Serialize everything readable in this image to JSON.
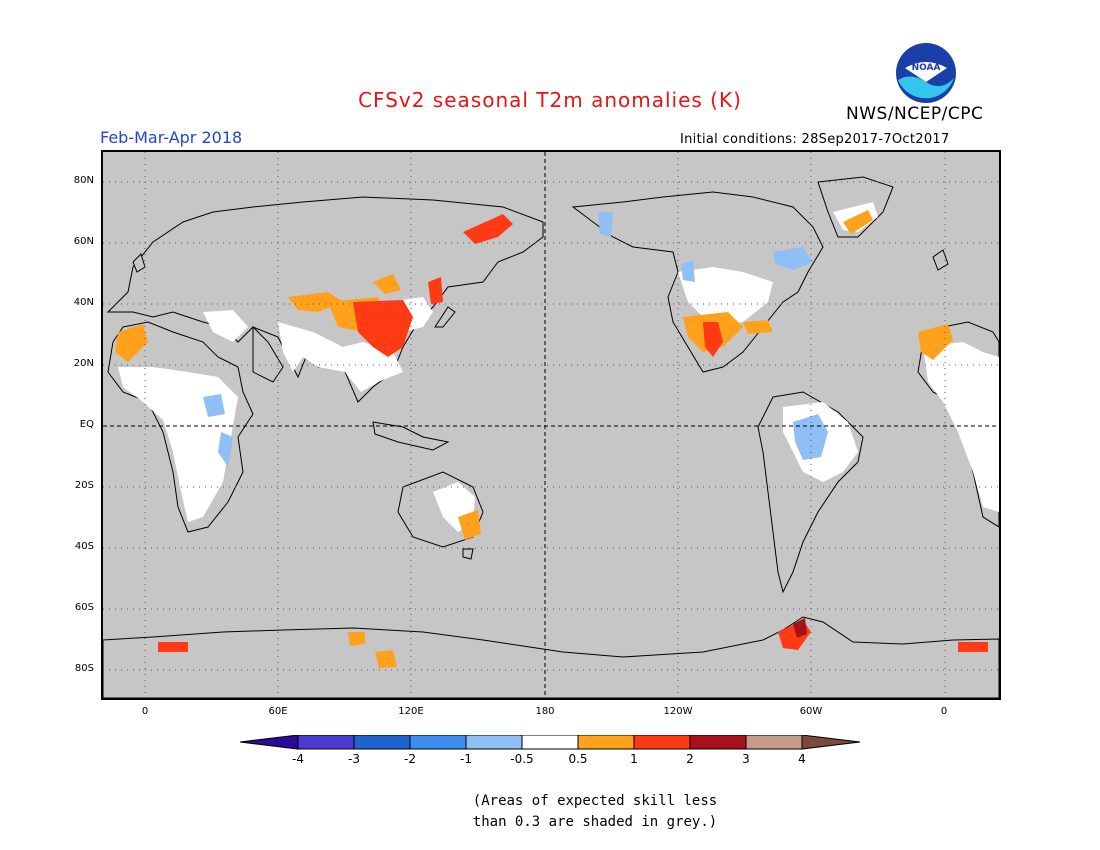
{
  "header": {
    "title": "CFSv2 seasonal T2m anomalies (K)",
    "org": "NWS/NCEP/CPC",
    "period": "Feb-Mar-Apr 2018",
    "init_conditions": "Initial conditions: 28Sep2017-7Oct2017",
    "logo_text": "NOAA"
  },
  "map": {
    "lat_labels": [
      "80N",
      "60N",
      "40N",
      "20N",
      "EQ",
      "20S",
      "40S",
      "60S",
      "80S"
    ],
    "lon_labels": [
      "0",
      "60E",
      "120E",
      "180",
      "120W",
      "60W",
      "0"
    ]
  },
  "colorbar": {
    "labels": [
      "-4",
      "-3",
      "-2",
      "-1",
      "-0.5",
      "0.5",
      "1",
      "2",
      "3",
      "4"
    ],
    "colors": [
      "#2b0a9a",
      "#4a3acf",
      "#1f62d0",
      "#3d8ef0",
      "#8ec0f5",
      "#ffffff",
      "#ffa11a",
      "#ff3a14",
      "#a8101a",
      "#c49a8a",
      "#7a4a3a"
    ]
  },
  "colors": {
    "ocean": "#c6c6c6",
    "land": "#ffffff",
    "title": "#ee1111",
    "period": "#2244dd"
  },
  "note": {
    "line1": "(Areas of expected skill less",
    "line2": "than 0.3 are shaded in grey.)"
  }
}
